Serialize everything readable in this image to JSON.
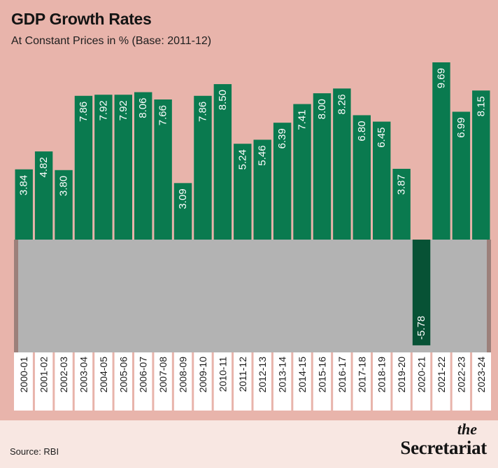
{
  "title": "GDP Growth Rates",
  "subtitle": "At Constant Prices in % (Base: 2011-12)",
  "source": "Source: RBI",
  "brand": {
    "line1": "the",
    "line2": "Secretariat"
  },
  "colors": {
    "background": "#e8b4ab",
    "positive_bar": "#0a7a4f",
    "negative_bar": "#075235",
    "negative_band": "#b3b3b3",
    "band_edge": "#9c807a",
    "footer": "#f8e7e2"
  },
  "chart_data": {
    "type": "bar",
    "title": "GDP Growth Rates",
    "subtitle": "At Constant Prices in % (Base: 2011-12)",
    "categories": [
      "2000-01",
      "2001-02",
      "2002-03",
      "2003-04",
      "2004-05",
      "2005-06",
      "2006-07",
      "2007-08",
      "2008-09",
      "2009-10",
      "2010-11",
      "2011-12",
      "2012-13",
      "2013-14",
      "2014-15",
      "2015-16",
      "2016-17",
      "2017-18",
      "2018-19",
      "2019-20",
      "2020-21",
      "2021-22",
      "2022-23",
      "2023-24"
    ],
    "values": [
      3.84,
      4.82,
      3.8,
      7.86,
      7.92,
      7.92,
      8.06,
      7.66,
      3.09,
      7.86,
      8.5,
      5.24,
      5.46,
      6.39,
      7.41,
      8.0,
      8.26,
      6.8,
      6.45,
      3.87,
      -5.78,
      9.69,
      6.99,
      8.15
    ],
    "value_labels": [
      "3.84",
      "4.82",
      "3.80",
      "7.86",
      "7.92",
      "7.92",
      "8.06",
      "7.66",
      "3.09",
      "7.86",
      "8.50",
      "5.24",
      "5.46",
      "6.39",
      "7.41",
      "8.00",
      "8.26",
      "6.80",
      "6.45",
      "3.87",
      "-5.78",
      "9.69",
      "6.99",
      "8.15"
    ],
    "ylim": [
      -5.78,
      9.69
    ],
    "data_labels": "inside-bars, rotated",
    "grid": false,
    "legend": "none",
    "xlabel": "",
    "ylabel": ""
  }
}
